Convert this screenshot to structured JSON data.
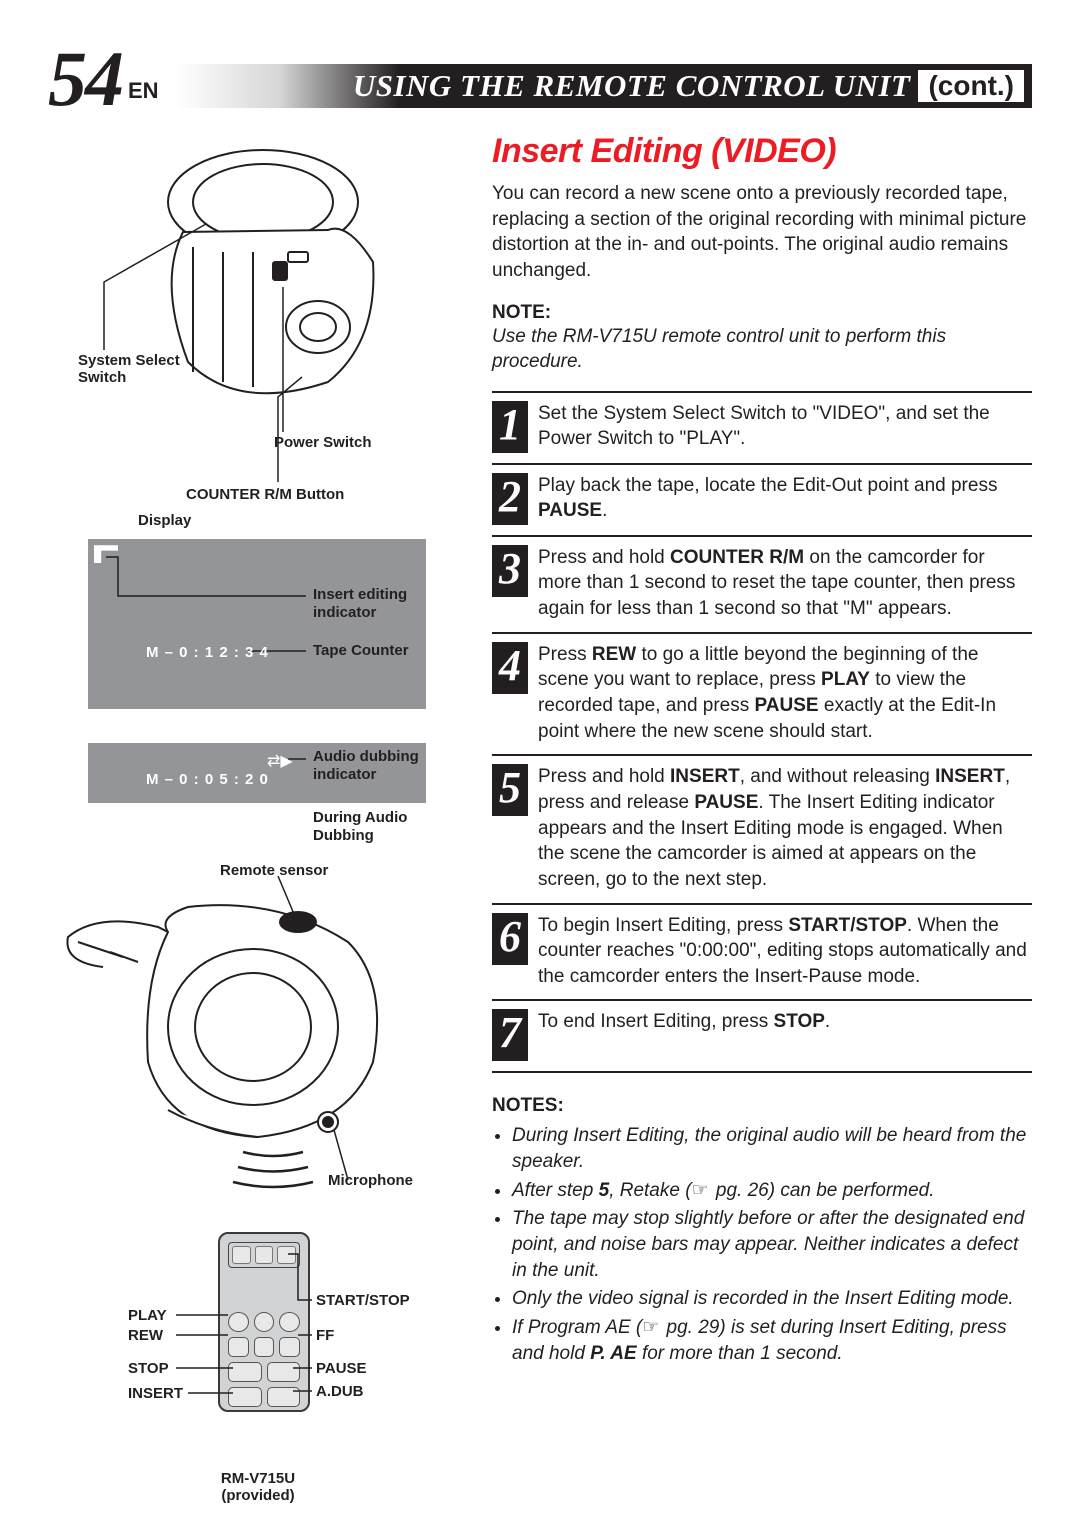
{
  "header": {
    "page_number": "54",
    "lang": "EN",
    "title": "USING THE REMOTE CONTROL UNIT",
    "cont": "(cont.)"
  },
  "left": {
    "system_select": "System Select Switch",
    "power_switch": "Power Switch",
    "counter_rm": "COUNTER R/M Button",
    "display": "Display",
    "insert_indicator": "Insert editing indicator",
    "tape_counter": "Tape Counter",
    "m_counter_1": "M – 0 : 1 2 : 3 4",
    "audio_dub_ind": "Audio dubbing indicator",
    "during_audio": "During Audio Dubbing",
    "m_counter_2": "M – 0 : 0 5 : 2 0",
    "remote_sensor": "Remote sensor",
    "microphone": "Microphone",
    "remote_labels": {
      "play": "PLAY",
      "rew": "REW",
      "stop": "STOP",
      "insert": "INSERT",
      "start_stop": "START/STOP",
      "ff": "FF",
      "pause": "PAUSE",
      "adub": "A.DUB"
    },
    "remote_caption_1": "RM-V715U",
    "remote_caption_2": "(provided)"
  },
  "right": {
    "title": "Insert Editing (VIDEO)",
    "intro": "You can record a new scene onto a previously recorded tape, replacing a section of the original recording with minimal picture distortion at the in- and out-points. The original audio remains unchanged.",
    "note_label": "NOTE:",
    "note": "Use the RM-V715U remote control unit to perform this procedure.",
    "steps": [
      "Set the System Select Switch to \"VIDEO\", and set the Power Switch to \"PLAY\".",
      "Play back the tape, locate the Edit-Out point and press <b>PAUSE</b>.",
      "Press and hold <b>COUNTER R/M</b> on the camcorder for more than 1 second to reset the tape counter, then press again for less than 1 second so that \"M\" appears.",
      "Press <b>REW</b> to go a little beyond the beginning of the scene you want to replace, press <b>PLAY</b> to view the recorded tape, and press <b>PAUSE</b> exactly at the Edit-In point where the new scene should start.",
      "Press and hold <b>INSERT</b>, and without releasing <b>INSERT</b>, press and release <b>PAUSE</b>. The Insert Editing indicator appears and the Insert Editing mode is engaged. When the scene the camcorder is aimed at appears on the screen, go to the next step.",
      "To begin Insert Editing, press <b>START/STOP</b>. When the counter reaches \"0:00:00\", editing stops automatically and the camcorder enters the Insert-Pause mode.",
      "To end Insert Editing, press <b>STOP</b>."
    ],
    "notes_label": "NOTES:",
    "notes": [
      "During Insert Editing, the original audio will be heard from the speaker.",
      "After step <b>5</b>, Retake (<span class='pg-ic'></span> pg. 26) can be performed.",
      "The tape may stop slightly before or after the designated end point, and noise bars may appear. Neither indicates a defect in the unit.",
      "Only the video signal is recorded in the Insert Editing mode.",
      "If Program AE (<span class='pg-ic'></span> pg. 29) is set during Insert Editing, press and hold <b>P. AE</b> for more than 1 second."
    ]
  },
  "colors": {
    "accent": "#ed1c24",
    "body": "#231f20",
    "grey_fill": "#939598",
    "remote_fill": "#d1d3d4"
  }
}
